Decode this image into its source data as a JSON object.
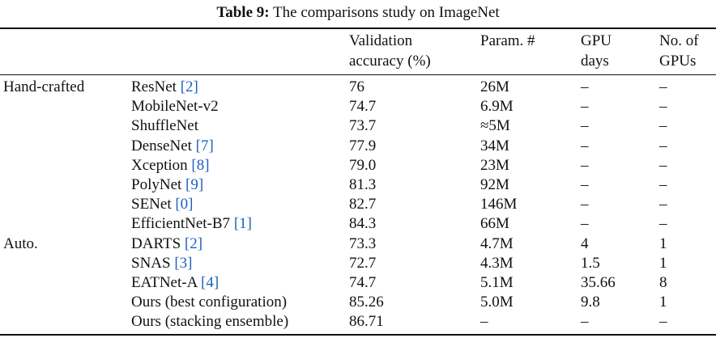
{
  "caption": {
    "label": "Table 9:",
    "text": "The comparisons study on ImageNet"
  },
  "headers": {
    "accuracy": [
      "Validation",
      "accuracy (%)"
    ],
    "params": "Param. #",
    "gpu_days": [
      "GPU",
      "days"
    ],
    "num_gpus": [
      "No. of",
      "GPUs"
    ]
  },
  "rows": [
    {
      "group": "Hand-crafted",
      "name": "ResNet",
      "ref": "[2]",
      "acc": "76",
      "params": "26M",
      "gpu_days": "–",
      "num_gpus": "–"
    },
    {
      "group": "",
      "name": "MobileNet-v2",
      "ref": "",
      "acc": "74.7",
      "params": "6.9M",
      "gpu_days": "–",
      "num_gpus": "–"
    },
    {
      "group": "",
      "name": "ShuffleNet",
      "ref": "",
      "acc": "73.7",
      "params": "≈5M",
      "gpu_days": "–",
      "num_gpus": "–"
    },
    {
      "group": "",
      "name": "DenseNet",
      "ref": "[7]",
      "acc": "77.9",
      "params": "34M",
      "gpu_days": "–",
      "num_gpus": "–"
    },
    {
      "group": "",
      "name": "Xception",
      "ref": "[8]",
      "acc": "79.0",
      "params": "23M",
      "gpu_days": "–",
      "num_gpus": "–"
    },
    {
      "group": "",
      "name": "PolyNet",
      "ref": "[9]",
      "acc": "81.3",
      "params": "92M",
      "gpu_days": "–",
      "num_gpus": "–"
    },
    {
      "group": "",
      "name": "SENet",
      "ref": "[0]",
      "acc": "82.7",
      "params": "146M",
      "gpu_days": "–",
      "num_gpus": "–"
    },
    {
      "group": "",
      "name": "EfficientNet-B7",
      "ref": "[1]",
      "acc": "84.3",
      "params": "66M",
      "gpu_days": "–",
      "num_gpus": "–"
    },
    {
      "group": "Auto.",
      "name": "DARTS",
      "ref": "[2]",
      "acc": "73.3",
      "params": "4.7M",
      "gpu_days": "4",
      "num_gpus": "1"
    },
    {
      "group": "",
      "name": "SNAS",
      "ref": "[3]",
      "acc": "72.7",
      "params": "4.3M",
      "gpu_days": "1.5",
      "num_gpus": "1"
    },
    {
      "group": "",
      "name": "EATNet-A",
      "ref": "[4]",
      "acc": "74.7",
      "params": "5.1M",
      "gpu_days": "35.66",
      "num_gpus": "8"
    },
    {
      "group": "",
      "name": "Ours (best configuration)",
      "ref": "",
      "acc": "85.26",
      "params": "5.0M",
      "gpu_days": "9.8",
      "num_gpus": "1"
    },
    {
      "group": "",
      "name": "Ours (stacking ensemble)",
      "ref": "",
      "acc": "86.71",
      "params": "–",
      "gpu_days": "–",
      "num_gpus": "–"
    }
  ]
}
